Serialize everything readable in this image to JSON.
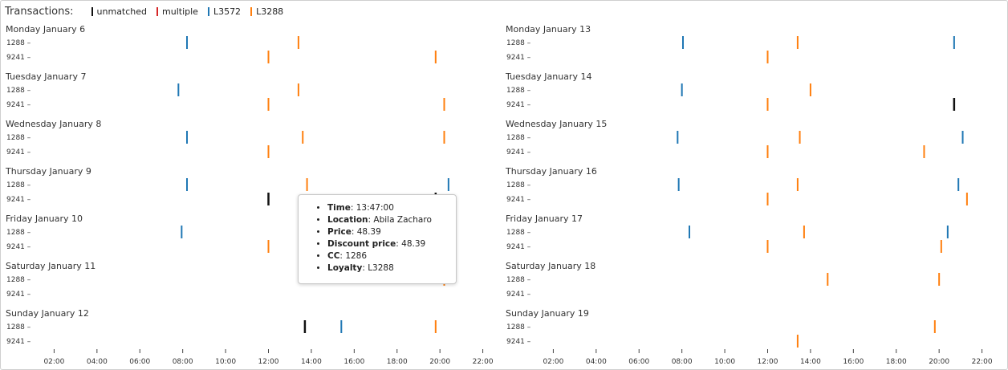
{
  "legend": {
    "title": "Transactions:",
    "items": [
      {
        "label": "unmatched",
        "color": "#111111"
      },
      {
        "label": "multiple",
        "color": "#d62728"
      },
      {
        "label": "L3572",
        "color": "#1f77b4"
      },
      {
        "label": "L3288",
        "color": "#ff7f0e"
      }
    ]
  },
  "tooltip": {
    "time_label": "Time",
    "time_value": "13:47:00",
    "location_label": "Location",
    "location_value": "Abila Zacharo",
    "price_label": "Price",
    "price_value": "48.39",
    "discount_label": "Discount price",
    "discount_value": "48.39",
    "cc_label": "CC",
    "cc_value": "1286",
    "loyalty_label": "Loyalty",
    "loyalty_value": "L3288"
  },
  "chart_data": {
    "type": "scatter",
    "x_unit": "hour of day",
    "xlim": [
      0,
      24
    ],
    "x_ticks": [
      "02:00",
      "04:00",
      "06:00",
      "08:00",
      "10:00",
      "12:00",
      "14:00",
      "16:00",
      "18:00",
      "20:00",
      "22:00"
    ],
    "row_labels": [
      "1288 –",
      "9241 –"
    ],
    "series_colors": {
      "unmatched": "#111111",
      "multiple": "#d62728",
      "L3572": "#1f77b4",
      "L3288": "#ff7f0e"
    },
    "columns": [
      {
        "days": [
          {
            "label": "Monday January 6",
            "marks": [
              {
                "row": 0,
                "x": 8.2,
                "s": "L3572"
              },
              {
                "row": 0,
                "x": 13.4,
                "s": "L3288"
              },
              {
                "row": 1,
                "x": 12.0,
                "s": "L3288"
              },
              {
                "row": 1,
                "x": 19.8,
                "s": "L3288"
              }
            ]
          },
          {
            "label": "Tuesday January 7",
            "marks": [
              {
                "row": 0,
                "x": 7.8,
                "s": "L3572"
              },
              {
                "row": 0,
                "x": 13.4,
                "s": "L3288"
              },
              {
                "row": 1,
                "x": 12.0,
                "s": "L3288"
              },
              {
                "row": 1,
                "x": 20.2,
                "s": "L3288"
              }
            ]
          },
          {
            "label": "Wednesday January 8",
            "marks": [
              {
                "row": 0,
                "x": 8.2,
                "s": "L3572"
              },
              {
                "row": 0,
                "x": 13.6,
                "s": "L3288"
              },
              {
                "row": 0,
                "x": 20.2,
                "s": "L3288"
              },
              {
                "row": 1,
                "x": 12.0,
                "s": "L3288"
              }
            ]
          },
          {
            "label": "Thursday January 9",
            "marks": [
              {
                "row": 0,
                "x": 8.2,
                "s": "L3572"
              },
              {
                "row": 0,
                "x": 13.8,
                "s": "L3288"
              },
              {
                "row": 0,
                "x": 20.4,
                "s": "L3572"
              },
              {
                "row": 1,
                "x": 12.0,
                "s": "unmatched"
              },
              {
                "row": 1,
                "x": 19.8,
                "s": "unmatched"
              }
            ]
          },
          {
            "label": "Friday January 10",
            "marks": [
              {
                "row": 0,
                "x": 7.95,
                "s": "L3572"
              },
              {
                "row": 1,
                "x": 12.0,
                "s": "L3288"
              },
              {
                "row": 1,
                "x": 13.55,
                "s": "L3288"
              }
            ]
          },
          {
            "label": "Saturday January 11",
            "marks": [
              {
                "row": 0,
                "x": 20.2,
                "s": "L3288"
              }
            ]
          },
          {
            "label": "Sunday January 12",
            "marks": [
              {
                "row": 0,
                "x": 13.7,
                "s": "unmatched"
              },
              {
                "row": 0,
                "x": 15.4,
                "s": "L3572"
              },
              {
                "row": 0,
                "x": 19.8,
                "s": "L3288"
              }
            ]
          }
        ]
      },
      {
        "days": [
          {
            "label": "Monday January 13",
            "marks": [
              {
                "row": 0,
                "x": 8.05,
                "s": "L3572"
              },
              {
                "row": 0,
                "x": 13.4,
                "s": "L3288"
              },
              {
                "row": 0,
                "x": 20.7,
                "s": "L3572"
              },
              {
                "row": 1,
                "x": 12.0,
                "s": "L3288"
              }
            ]
          },
          {
            "label": "Tuesday January 14",
            "marks": [
              {
                "row": 0,
                "x": 8.0,
                "s": "L3572"
              },
              {
                "row": 0,
                "x": 14.0,
                "s": "L3288"
              },
              {
                "row": 1,
                "x": 12.0,
                "s": "L3288"
              },
              {
                "row": 1,
                "x": 20.7,
                "s": "unmatched"
              }
            ]
          },
          {
            "label": "Wednesday January 15",
            "marks": [
              {
                "row": 0,
                "x": 7.8,
                "s": "L3572"
              },
              {
                "row": 0,
                "x": 13.5,
                "s": "L3288"
              },
              {
                "row": 0,
                "x": 21.1,
                "s": "L3572"
              },
              {
                "row": 1,
                "x": 12.0,
                "s": "L3288"
              },
              {
                "row": 1,
                "x": 19.3,
                "s": "L3288"
              }
            ]
          },
          {
            "label": "Thursday January 16",
            "marks": [
              {
                "row": 0,
                "x": 7.85,
                "s": "L3572"
              },
              {
                "row": 0,
                "x": 13.4,
                "s": "L3288"
              },
              {
                "row": 0,
                "x": 20.9,
                "s": "L3572"
              },
              {
                "row": 1,
                "x": 12.0,
                "s": "L3288"
              },
              {
                "row": 1,
                "x": 21.3,
                "s": "L3288"
              }
            ]
          },
          {
            "label": "Friday January 17",
            "marks": [
              {
                "row": 0,
                "x": 8.35,
                "s": "L3572"
              },
              {
                "row": 0,
                "x": 13.7,
                "s": "L3288"
              },
              {
                "row": 0,
                "x": 20.4,
                "s": "L3572"
              },
              {
                "row": 1,
                "x": 12.0,
                "s": "L3288"
              },
              {
                "row": 1,
                "x": 20.1,
                "s": "L3288"
              }
            ]
          },
          {
            "label": "Saturday January 18",
            "marks": [
              {
                "row": 0,
                "x": 14.8,
                "s": "L3288"
              },
              {
                "row": 0,
                "x": 20.0,
                "s": "L3288"
              }
            ]
          },
          {
            "label": "Sunday January 19",
            "marks": [
              {
                "row": 0,
                "x": 19.8,
                "s": "L3288"
              },
              {
                "row": 1,
                "x": 13.4,
                "s": "L3288"
              }
            ]
          }
        ]
      }
    ]
  }
}
